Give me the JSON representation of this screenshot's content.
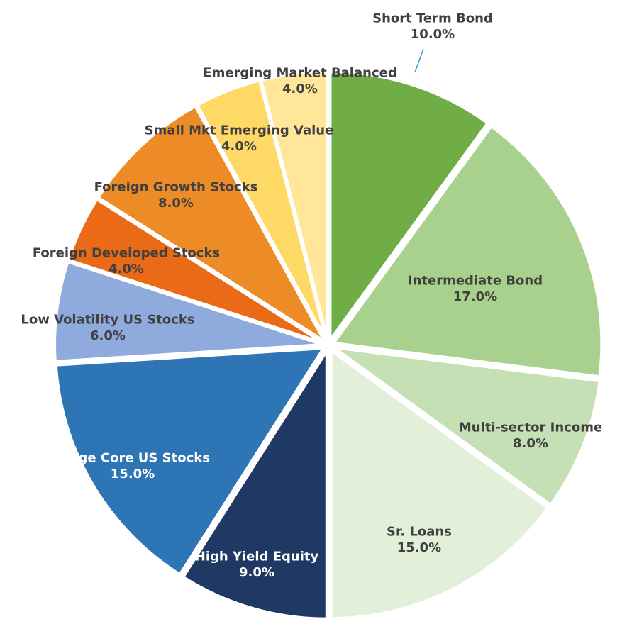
{
  "chart_data": {
    "type": "pie",
    "title": "",
    "legend": "none",
    "series": [
      {
        "name": "",
        "slices": [
          {
            "label": "Short Term Bond",
            "value": 10.0,
            "value_label": "10.0%",
            "color": "#70AD47",
            "label_color": "#404040"
          },
          {
            "label": "Intermediate Bond",
            "value": 17.0,
            "value_label": "17.0%",
            "color": "#A9D18E",
            "label_color": "#404040"
          },
          {
            "label": "Multi-sector Income",
            "value": 8.0,
            "value_label": "8.0%",
            "color": "#C5E0B4",
            "label_color": "#404040"
          },
          {
            "label": "Sr. Loans",
            "value": 15.0,
            "value_label": "15.0%",
            "color": "#E2F0D9",
            "label_color": "#404040"
          },
          {
            "label": "High Yield Equity",
            "value": 9.0,
            "value_label": "9.0%",
            "color": "#203864",
            "label_color": "#FFFFFF"
          },
          {
            "label": "Large Core US Stocks",
            "value": 15.0,
            "value_label": "15.0%",
            "color": "#2E75B6",
            "label_color": "#FFFFFF"
          },
          {
            "label": "Low Volatility US Stocks",
            "value": 6.0,
            "value_label": "6.0%",
            "color": "#8FAADC",
            "label_color": "#404040"
          },
          {
            "label": "Foreign Developed Stocks",
            "value": 4.0,
            "value_label": "4.0%",
            "color": "#EA6A17",
            "label_color": "#404040"
          },
          {
            "label": "Foreign Growth Stocks",
            "value": 8.0,
            "value_label": "8.0%",
            "color": "#ED8B26",
            "label_color": "#404040"
          },
          {
            "label": "Small Mkt Emerging Value",
            "value": 4.0,
            "value_label": "4.0%",
            "color": "#FFD966",
            "label_color": "#404040"
          },
          {
            "label": "Emerging Market Balanced",
            "value": 4.0,
            "value_label": "4.0%",
            "color": "#FFE699",
            "label_color": "#404040"
          }
        ]
      }
    ],
    "leader_line_color": "#2E9BD6"
  }
}
